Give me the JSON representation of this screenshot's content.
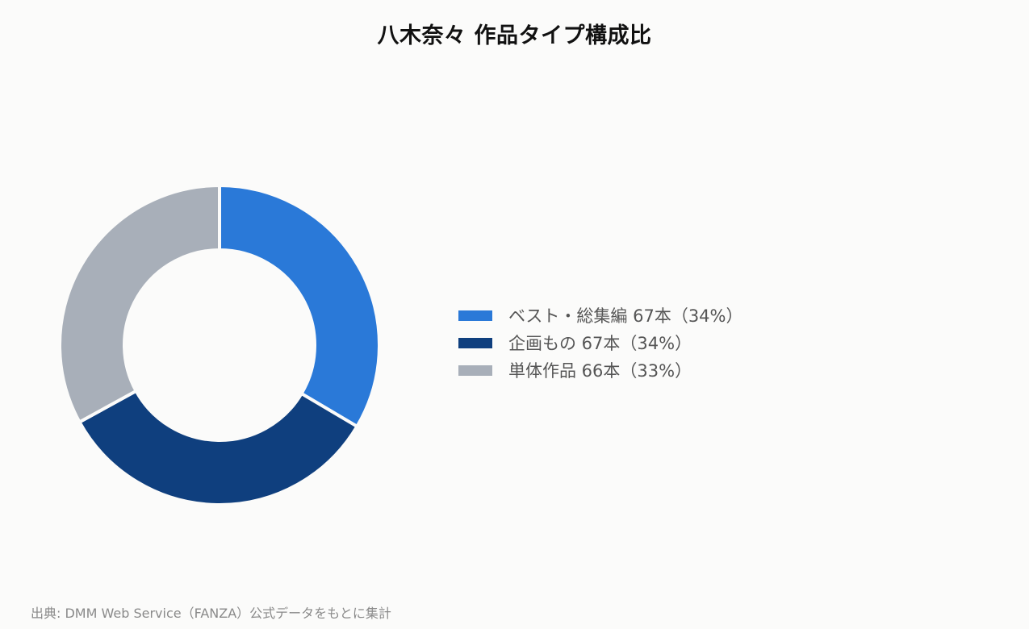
{
  "page": {
    "title": "八木奈々 作品タイプ構成比",
    "source": "出典: DMM Web Service（FANZA）公式データをもとに集計"
  },
  "chart_data": {
    "type": "pie",
    "donut": true,
    "title": "八木奈々 作品タイプ構成比",
    "legend_position": "right",
    "series": [
      {
        "name": "ベスト・総集編",
        "value": 67,
        "percent": 34,
        "color": "#2a79d8",
        "legend_label": "ベスト・総集編 67本（34%）"
      },
      {
        "name": "企画もの",
        "value": 67,
        "percent": 34,
        "color": "#0f3f7e",
        "legend_label": "企画もの 67本（34%）"
      },
      {
        "name": "単体作品",
        "value": 66,
        "percent": 33,
        "color": "#a8afb9",
        "legend_label": "単体作品 66本（33%）"
      }
    ]
  }
}
